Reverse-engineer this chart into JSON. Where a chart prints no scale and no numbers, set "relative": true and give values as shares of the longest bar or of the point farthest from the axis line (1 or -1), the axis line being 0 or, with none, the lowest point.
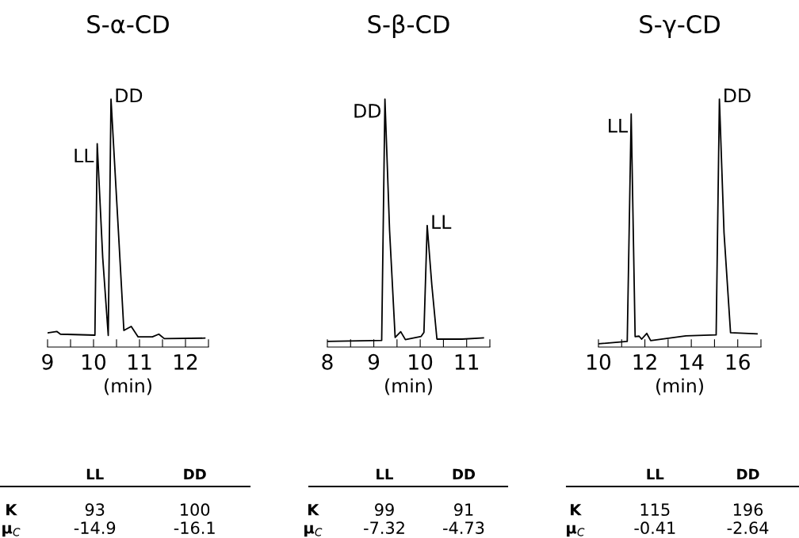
{
  "chart_data": [
    {
      "type": "line",
      "title": "S-α-CD",
      "xlabel": "(min)",
      "relative": true,
      "color": "#000000",
      "tick_labels": "x",
      "grid": false,
      "legend": false,
      "x": [
        9.0,
        9.2,
        9.28,
        10.03,
        10.08,
        10.2,
        10.32,
        10.38,
        10.54,
        10.66,
        10.82,
        10.97,
        11.28,
        11.42,
        11.54,
        12.42
      ],
      "values": [
        0.057,
        0.063,
        0.052,
        0.048,
        0.82,
        0.36,
        0.047,
        1.0,
        0.47,
        0.067,
        0.083,
        0.041,
        0.041,
        0.052,
        0.034,
        0.036
      ],
      "xlim": [
        9,
        12.5
      ],
      "xticks": [
        9,
        {
          "value": 9.5,
          "label": null
        },
        10,
        {
          "value": 10.5,
          "label": null
        },
        11,
        {
          "value": 11.5,
          "label": null
        },
        12,
        {
          "value": 12.5,
          "label": null
        }
      ],
      "annotations": [
        {
          "text": "LL",
          "x": 10.08,
          "y": 0.82
        },
        {
          "text": "DD",
          "x": 10.38,
          "y": 1.0
        },
        "LL",
        "DD",
        "K",
        "93",
        "100",
        "μ$_{C}$",
        "-14.9",
        "-16.1"
      ]
    },
    {
      "type": "line",
      "title": "S-β-CD",
      "xlabel": "(min)",
      "relative": true,
      "color": "#000000",
      "tick_labels": "x",
      "grid": false,
      "legend": false,
      "x": [
        8.0,
        9.17,
        9.24,
        9.34,
        9.46,
        9.58,
        9.68,
        10.02,
        10.08,
        10.15,
        10.25,
        10.36,
        10.9,
        11.36
      ],
      "values": [
        0.023,
        0.027,
        1.0,
        0.47,
        0.039,
        0.062,
        0.03,
        0.043,
        0.059,
        0.49,
        0.25,
        0.032,
        0.032,
        0.037
      ],
      "xlim": [
        8,
        11.5
      ],
      "xticks": [
        8,
        {
          "value": 8.5,
          "label": null
        },
        9,
        {
          "value": 9.5,
          "label": null
        },
        10,
        {
          "value": 10.5,
          "label": null
        },
        11,
        {
          "value": 11.5,
          "label": null
        }
      ],
      "annotations": [
        {
          "text": "DD",
          "x": 9.24,
          "y": 1.0
        },
        {
          "text": "LL",
          "x": 10.15,
          "y": 0.49
        },
        "LL",
        "DD",
        "K",
        "99",
        "91",
        "μ$_{C}$",
        "-7.32",
        "-4.73"
      ]
    },
    {
      "type": "line",
      "title": "S-γ-CD",
      "xlabel": "(min)",
      "relative": true,
      "color": "#000000",
      "tick_labels": "x",
      "grid": false,
      "legend": false,
      "x": [
        10.0,
        11.24,
        11.41,
        11.58,
        11.75,
        11.86,
        12.08,
        12.25,
        13.77,
        15.07,
        15.21,
        15.41,
        15.69,
        16.83
      ],
      "values": [
        0.013,
        0.023,
        0.94,
        0.042,
        0.044,
        0.032,
        0.055,
        0.026,
        0.045,
        0.049,
        1.0,
        0.46,
        0.058,
        0.053
      ],
      "xlim": [
        10,
        17
      ],
      "xticks": [
        10,
        {
          "value": 11,
          "label": null
        },
        12,
        {
          "value": 13,
          "label": null
        },
        14,
        {
          "value": 15,
          "label": null
        },
        16,
        {
          "value": 17,
          "label": null
        }
      ],
      "annotations": [
        {
          "text": "LL",
          "x": 11.41,
          "y": 0.94
        },
        {
          "text": "DD",
          "x": 15.21,
          "y": 1.0
        },
        "LL",
        "DD",
        "K",
        "115",
        "196",
        "μ$_{C}$",
        "-0.41",
        "-2.64"
      ]
    }
  ]
}
